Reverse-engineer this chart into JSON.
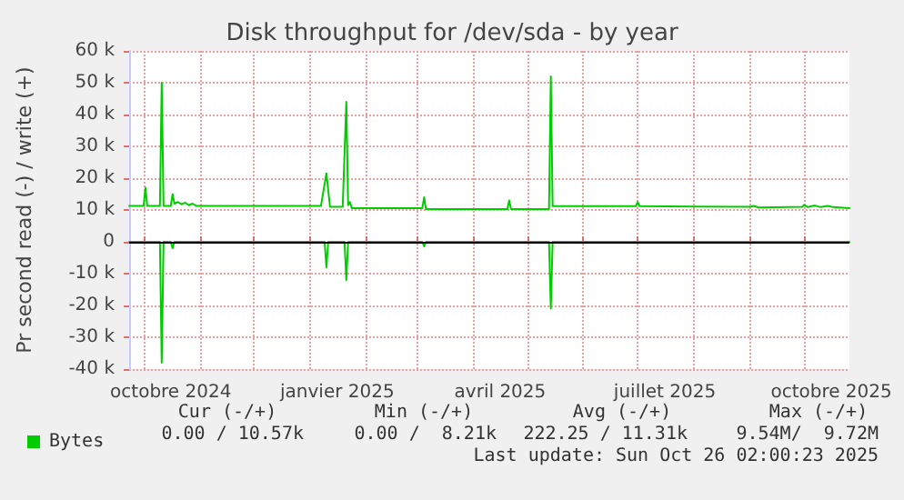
{
  "chart_data": {
    "type": "line",
    "title": "Disk throughput for /dev/sda - by year",
    "ylabel": "Pr second read (-) / write (+)",
    "xlim": [
      "2024-09-23",
      "2025-10-26"
    ],
    "xticks": [
      {
        "value": "2024-10-01",
        "label": null
      },
      {
        "value": "2024-10-16",
        "label": "octobre 2024"
      },
      {
        "value": "2024-11-01",
        "label": null
      },
      {
        "value": "2024-12-01",
        "label": null
      },
      {
        "value": "2025-01-01",
        "label": null
      },
      {
        "value": "2025-01-16",
        "label": "janvier 2025"
      },
      {
        "value": "2025-02-01",
        "label": null
      },
      {
        "value": "2025-03-01",
        "label": null
      },
      {
        "value": "2025-04-01",
        "label": null
      },
      {
        "value": "2025-04-16",
        "label": "avril 2025"
      },
      {
        "value": "2025-05-01",
        "label": null
      },
      {
        "value": "2025-06-01",
        "label": null
      },
      {
        "value": "2025-07-01",
        "label": null
      },
      {
        "value": "2025-07-16",
        "label": "juillet 2025"
      },
      {
        "value": "2025-08-01",
        "label": null
      },
      {
        "value": "2025-09-01",
        "label": null
      },
      {
        "value": "2025-10-01",
        "label": null
      },
      {
        "value": "2025-10-16",
        "label": "octobre 2025"
      }
    ],
    "ylim": [
      -40000,
      60000
    ],
    "yticks": [
      {
        "value": -40000,
        "label": "-40 k"
      },
      {
        "value": -30000,
        "label": "-30 k"
      },
      {
        "value": -20000,
        "label": "-20 k"
      },
      {
        "value": -10000,
        "label": "-10 k"
      },
      0,
      {
        "value": 10000,
        "label": "10 k"
      },
      {
        "value": 20000,
        "label": "20 k"
      },
      {
        "value": 30000,
        "label": "30 k"
      },
      {
        "value": 40000,
        "label": "40 k"
      },
      {
        "value": 50000,
        "label": "50 k"
      },
      {
        "value": 60000,
        "label": "60 k"
      }
    ],
    "grid": true,
    "legend": "bottom left",
    "marker": "none",
    "line_style": "solid",
    "ref_lines": [
      {
        "axis": "y",
        "value": 0,
        "color": "#000000"
      }
    ],
    "series": [
      {
        "name": "Bytes",
        "color": "#00cc00",
        "x": [
          "2024-09-23",
          "2024-10-01",
          "2024-10-02",
          "2024-10-03",
          "2024-10-10",
          "2024-10-11",
          "2024-10-12",
          "2024-10-16",
          "2024-10-17",
          "2024-10-18",
          "2024-10-20",
          "2024-10-22",
          "2024-10-24",
          "2024-10-26",
          "2024-10-28",
          "2024-10-30",
          "2025-01-07",
          "2025-01-10",
          "2025-01-12",
          "2025-01-19",
          "2025-01-21",
          "2025-01-22",
          "2025-01-23",
          "2025-01-24",
          "2025-03-04",
          "2025-03-05",
          "2025-03-06",
          "2025-04-20",
          "2025-04-21",
          "2025-04-22",
          "2025-05-13",
          "2025-05-14",
          "2025-05-15",
          "2025-06-30",
          "2025-07-01",
          "2025-07-02",
          "2025-09-01",
          "2025-09-03",
          "2025-09-06",
          "2025-09-30",
          "2025-10-01",
          "2025-10-03",
          "2025-10-07",
          "2025-10-10",
          "2025-10-14",
          "2025-10-17",
          "2025-10-26"
        ],
        "values": [
          11300,
          11300,
          17000,
          11300,
          11300,
          50000,
          11300,
          11300,
          15000,
          12000,
          12500,
          11800,
          12300,
          11500,
          12000,
          11300,
          11300,
          21500,
          11000,
          11000,
          44000,
          11500,
          12500,
          10600,
          10600,
          14000,
          10300,
          10300,
          13000,
          10300,
          10300,
          52000,
          11200,
          11200,
          12500,
          11200,
          11000,
          11300,
          10800,
          11000,
          11600,
          10900,
          11400,
          10900,
          11300,
          10900,
          10570
        ]
      },
      {
        "color": "#00cc00",
        "x": [
          "2024-09-23",
          "2024-10-10",
          "2024-10-11",
          "2024-10-12",
          "2024-10-16",
          "2024-10-17",
          "2024-10-18",
          "2025-01-09",
          "2025-01-10",
          "2025-01-11",
          "2025-01-20",
          "2025-01-21",
          "2025-01-22",
          "2025-03-04",
          "2025-03-05",
          "2025-03-06",
          "2025-05-13",
          "2025-05-14",
          "2025-05-15",
          "2025-10-26"
        ],
        "values": [
          0,
          0,
          -38000,
          0,
          0,
          -2000,
          0,
          0,
          -8000,
          0,
          0,
          -12000,
          0,
          0,
          -1500,
          0,
          0,
          -21000,
          0,
          0
        ]
      }
    ],
    "annotations": [
      "Cur (-/+)",
      "Min (-/+)",
      "Avg (-/+)",
      "Max (-/+)",
      "0.00 / 10.57k",
      "0.00 /  8.21k",
      "222.25 / 11.31k",
      "9.54M/  9.72M",
      "Last update: Sun Oct 26 02:00:23 2025"
    ]
  }
}
